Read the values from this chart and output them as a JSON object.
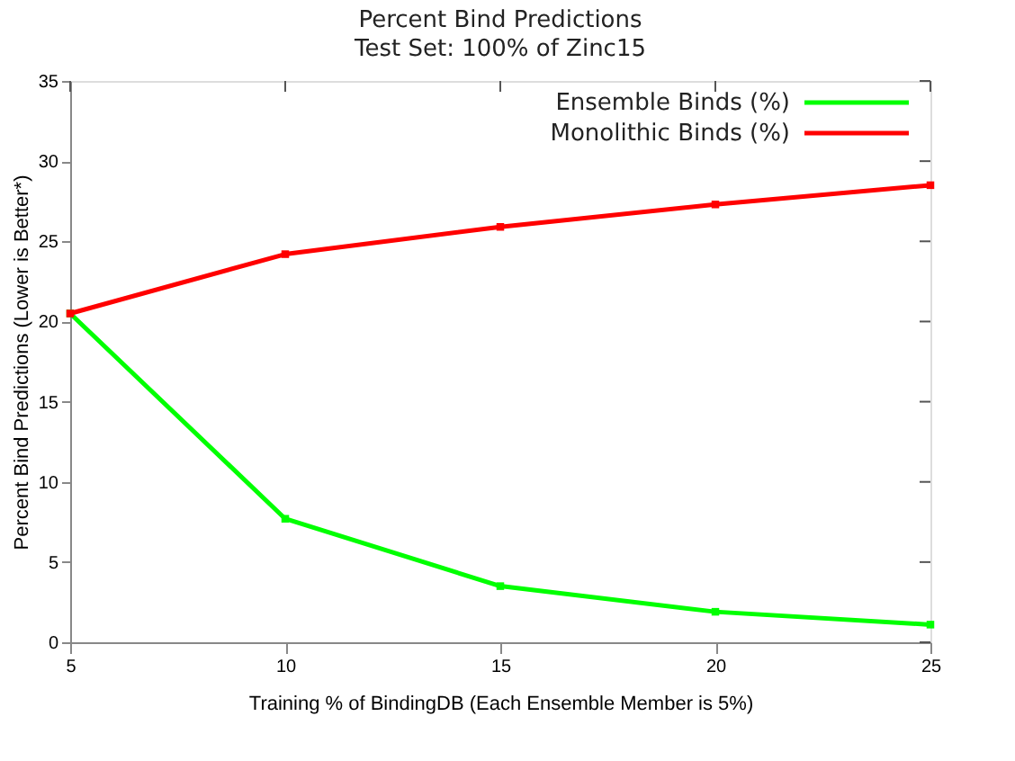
{
  "chart_data": {
    "type": "line",
    "title": "Percent Bind Predictions",
    "subtitle": "Test Set: 100% of Zinc15",
    "xlabel": "Training % of BindingDB (Each Ensemble Member is 5%)",
    "ylabel": "Percent Bind Predictions (Lower is Better*)",
    "x": [
      5,
      10,
      15,
      20,
      25
    ],
    "series": [
      {
        "name": "Ensemble Binds (%)",
        "color": "#00ff00",
        "values": [
          20.5,
          7.7,
          3.5,
          1.9,
          1.1
        ]
      },
      {
        "name": "Monolithic Binds (%)",
        "color": "#ff0000",
        "values": [
          20.5,
          24.2,
          25.9,
          27.3,
          28.5
        ]
      }
    ],
    "xlim": [
      5,
      25
    ],
    "xticks": [
      5,
      10,
      15,
      20,
      25
    ],
    "ylim": [
      0,
      35
    ],
    "yticks": [
      0,
      5,
      10,
      15,
      20,
      25,
      30,
      35
    ],
    "grid": false,
    "legend": "top right",
    "marker": "square",
    "line_style": "solid"
  }
}
